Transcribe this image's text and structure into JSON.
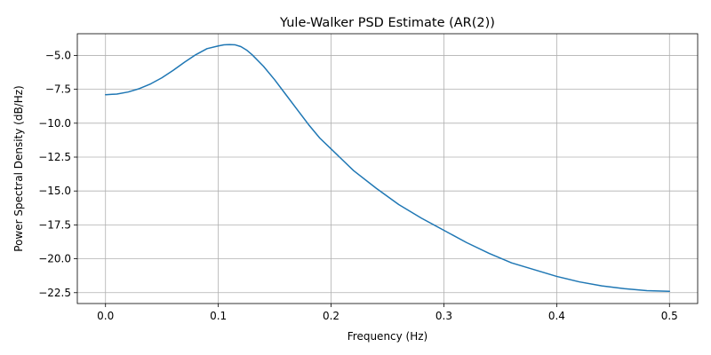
{
  "chart_data": {
    "type": "line",
    "title": "Yule-Walker PSD Estimate (AR(2))",
    "xlabel": "Frequency (Hz)",
    "ylabel": "Power Spectral Density (dB/Hz)",
    "xlim": [
      -0.025,
      0.525
    ],
    "ylim": [
      -23.3,
      -3.4
    ],
    "grid": true,
    "x_ticks": [
      0.0,
      0.1,
      0.2,
      0.3,
      0.4,
      0.5
    ],
    "x_tick_labels": [
      "0.0",
      "0.1",
      "0.2",
      "0.3",
      "0.4",
      "0.5"
    ],
    "y_ticks": [
      -5.0,
      -7.5,
      -10.0,
      -12.5,
      -15.0,
      -17.5,
      -20.0,
      -22.5
    ],
    "y_tick_labels": [
      "−5.0",
      "−7.5",
      "−10.0",
      "−12.5",
      "−15.0",
      "−17.5",
      "−20.0",
      "−22.5"
    ],
    "series": [
      {
        "color": "#1f77b4",
        "x": [
          0.0,
          0.01,
          0.02,
          0.03,
          0.04,
          0.05,
          0.06,
          0.07,
          0.08,
          0.09,
          0.1,
          0.105,
          0.11,
          0.115,
          0.12,
          0.125,
          0.13,
          0.14,
          0.15,
          0.16,
          0.17,
          0.18,
          0.19,
          0.2,
          0.22,
          0.24,
          0.26,
          0.28,
          0.3,
          0.32,
          0.34,
          0.36,
          0.38,
          0.4,
          0.42,
          0.44,
          0.46,
          0.48,
          0.5
        ],
        "y": [
          -7.9,
          -7.85,
          -7.7,
          -7.45,
          -7.1,
          -6.65,
          -6.1,
          -5.5,
          -4.95,
          -4.5,
          -4.3,
          -4.22,
          -4.2,
          -4.22,
          -4.35,
          -4.6,
          -4.95,
          -5.8,
          -6.8,
          -7.9,
          -9.0,
          -10.1,
          -11.1,
          -11.9,
          -13.5,
          -14.8,
          -16.0,
          -17.0,
          -17.9,
          -18.8,
          -19.6,
          -20.3,
          -20.8,
          -21.3,
          -21.7,
          -22.0,
          -22.2,
          -22.35,
          -22.4
        ]
      }
    ]
  }
}
